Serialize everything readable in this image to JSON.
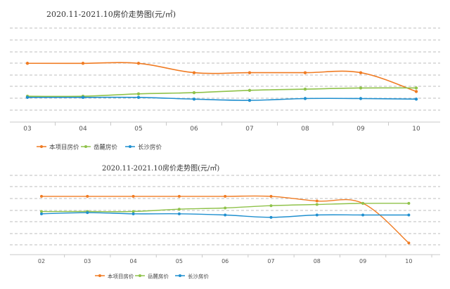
{
  "chart_data": [
    {
      "type": "line",
      "title": "2020.11-2021.10房价走势图(元/㎡)",
      "categories": [
        "03",
        "04",
        "05",
        "06",
        "07",
        "08",
        "09",
        "10"
      ],
      "series": [
        {
          "name": "本项目房价",
          "color": "#f07b22",
          "values": [
            100,
            100,
            100,
            92,
            92,
            92,
            92,
            76
          ]
        },
        {
          "name": "岳麓房价",
          "color": "#8fc24a",
          "values": [
            72,
            72,
            74,
            75,
            77,
            78,
            79,
            79
          ]
        },
        {
          "name": "长沙房价",
          "color": "#1f8fcf",
          "values": [
            71,
            71,
            71,
            69.5,
            68.5,
            70,
            70,
            69.5
          ]
        }
      ],
      "ylim": [
        50,
        130
      ],
      "grid": true,
      "legend_position": "bottom-left"
    },
    {
      "type": "line",
      "title": "2020.11-2021.10房价走势图(元/㎡)",
      "categories": [
        "02",
        "03",
        "04",
        "05",
        "06",
        "07",
        "08",
        "09",
        "10"
      ],
      "series": [
        {
          "name": "本项目房价",
          "color": "#f07b22",
          "values": [
            100,
            100,
            100,
            100,
            100,
            100,
            96,
            94,
            60
          ]
        },
        {
          "name": "岳麓房价",
          "color": "#8fc24a",
          "values": [
            87,
            87,
            87,
            89,
            90,
            92,
            93,
            94,
            94
          ]
        },
        {
          "name": "长沙房价",
          "color": "#1f8fcf",
          "values": [
            85,
            86,
            85,
            85,
            84,
            82,
            84,
            84,
            84
          ]
        }
      ],
      "ylim": [
        50,
        118
      ],
      "grid": true,
      "legend_position": "bottom"
    }
  ]
}
